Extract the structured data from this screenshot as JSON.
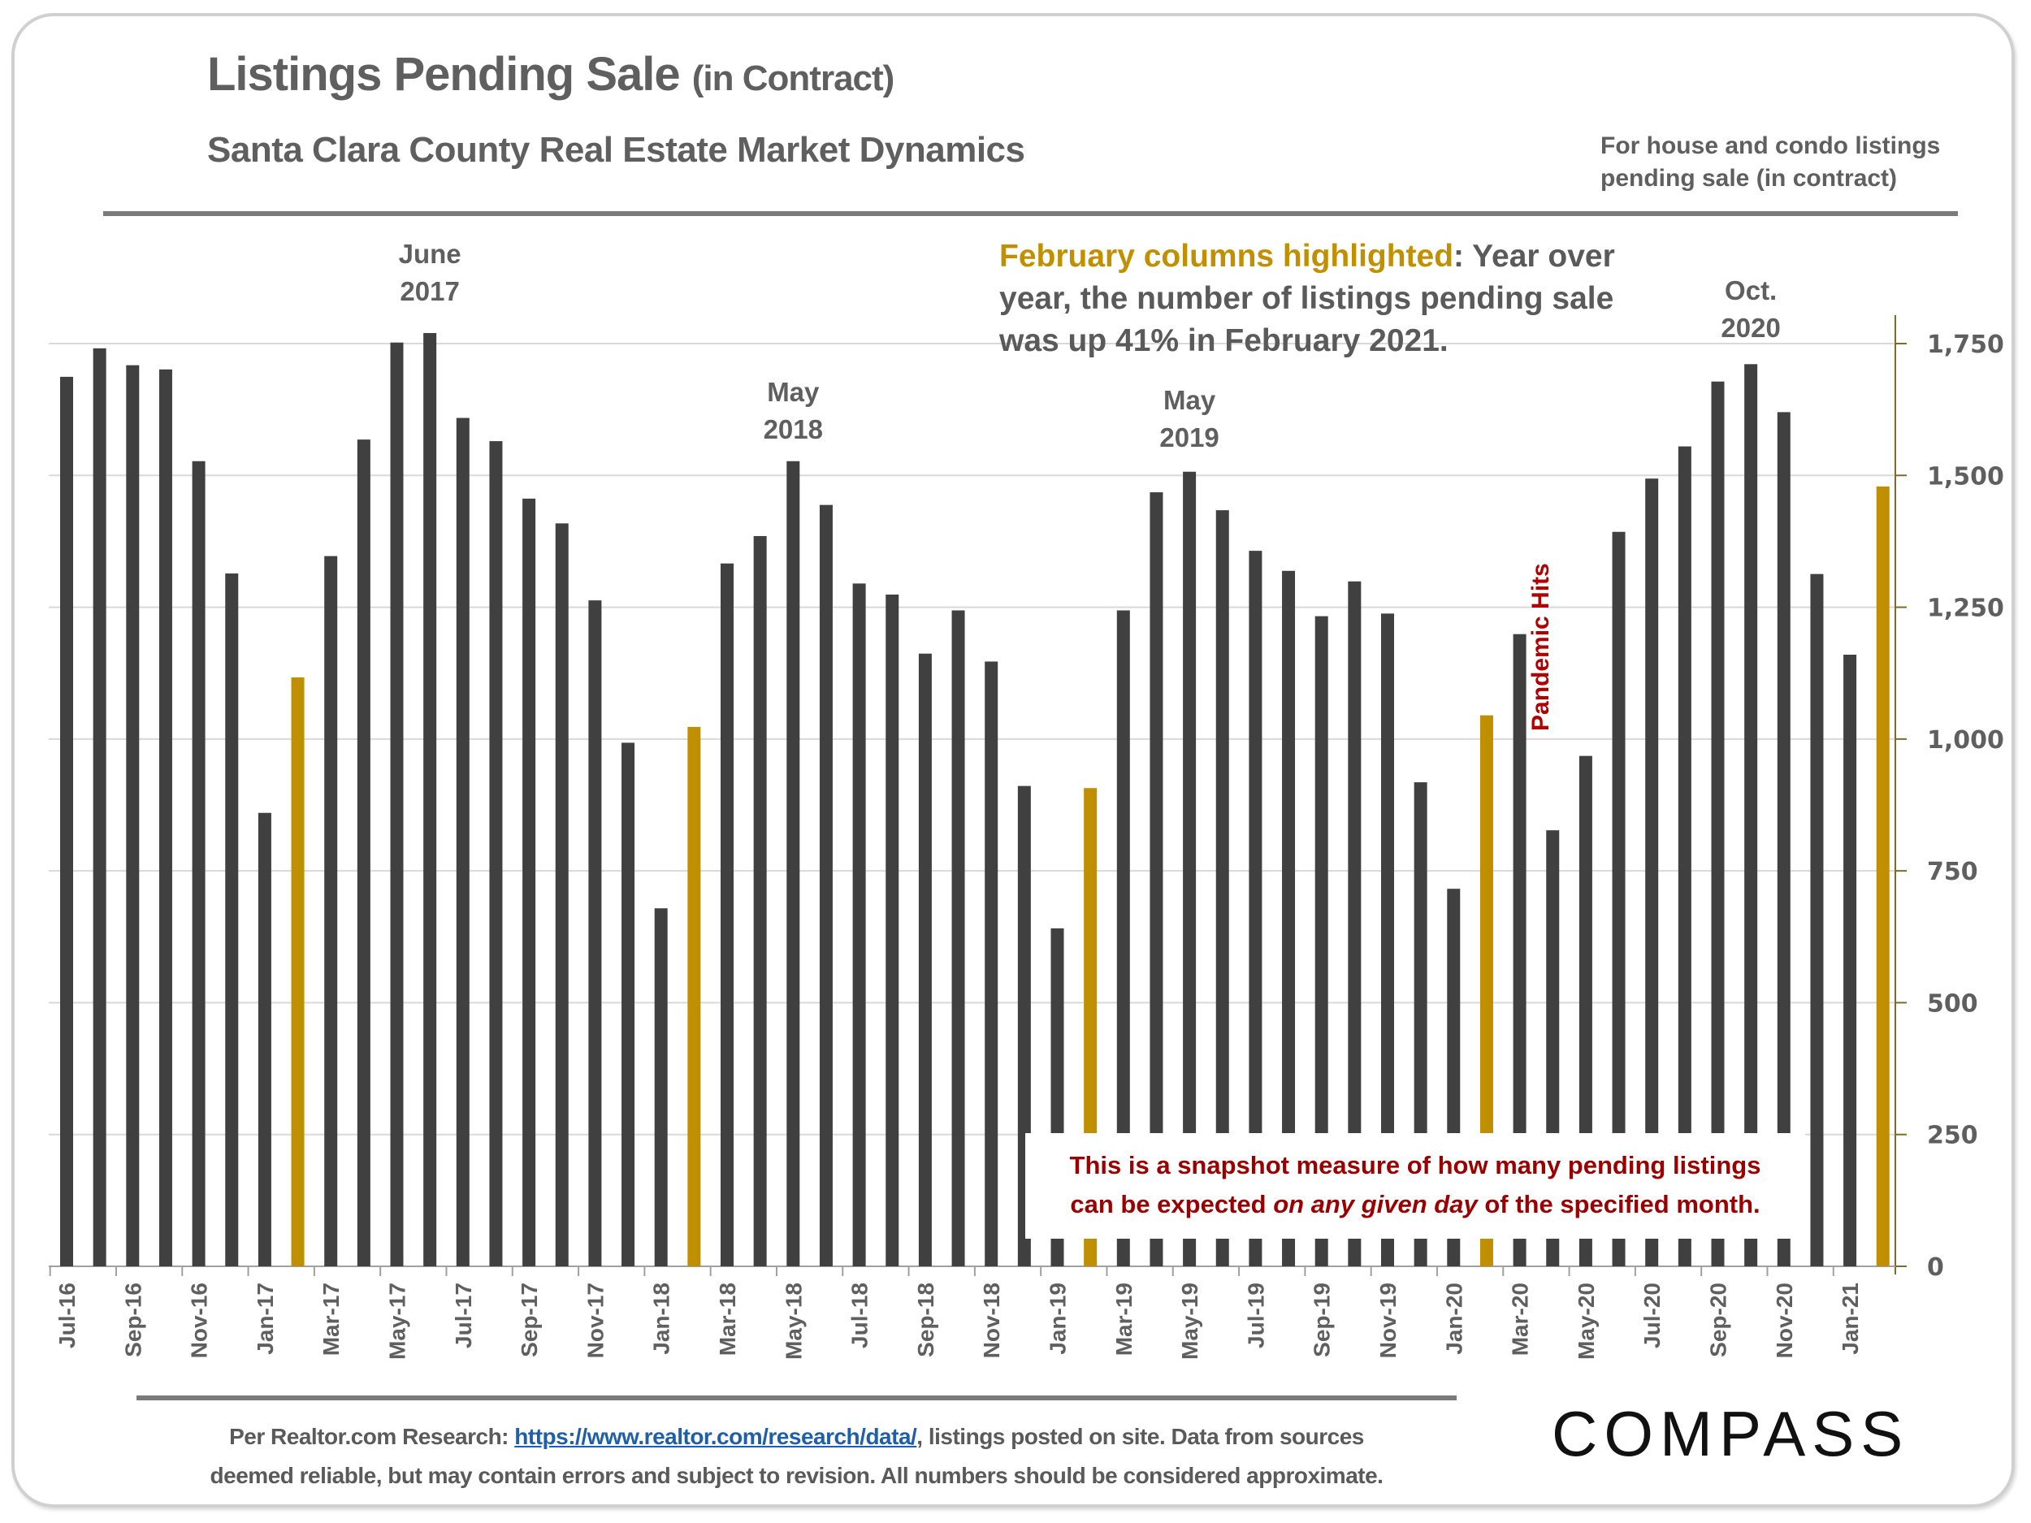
{
  "header": {
    "title": "Listings Pending Sale",
    "title_paren": "(in Contract)",
    "subtitle": "Santa Clara County Real Estate Market Dynamics",
    "note": "For house and condo listings pending sale (in contract)"
  },
  "annotations": {
    "headline_gold": "February columns highlighted",
    "headline_rest": ": Year over year, the number of listings pending sale was up 41% in February 2021.",
    "peaks": [
      {
        "line1": "June",
        "line2": "2017",
        "category": "Jun-17"
      },
      {
        "line1": "May",
        "line2": "2018",
        "category": "May-18"
      },
      {
        "line1": "May",
        "line2": "2019",
        "category": "May-19"
      },
      {
        "line1": "Oct.",
        "line2": "2020",
        "category": "Oct-20"
      }
    ],
    "pandemic": "Pandemic Hits",
    "snapshot_line1": "This is a snapshot measure of how many pending listings",
    "snapshot_line2_pre": "can be expected ",
    "snapshot_line2_em": "on any given day",
    "snapshot_line2_post": " of the specified month."
  },
  "footer": {
    "source_prefix": "Per Realtor.com Research:  ",
    "source_link": "https://www.realtor.com/research/data/",
    "source_suffix": ", listings posted on site. Data from sources",
    "line2": "deemed reliable, but may contain errors and subject to revision. All numbers should be considered approximate.",
    "logo": "COMPASS"
  },
  "colors": {
    "bar": "#404040",
    "highlight": "#bf8f00",
    "axis": "#7f6a2a",
    "grid": "#d9d9d9",
    "text": "#5f5f5f",
    "alert": "#9b0000"
  },
  "chart_data": {
    "type": "bar",
    "title": "Listings Pending Sale (in Contract)",
    "subtitle": "Santa Clara County Real Estate Market Dynamics",
    "xlabel": "",
    "ylabel": "",
    "ylim": [
      0,
      1750
    ],
    "yticks": [
      0,
      250,
      500,
      750,
      1000,
      1250,
      1500,
      1750
    ],
    "ytick_labels": [
      "0",
      "250",
      "500",
      "750",
      "1,000",
      "1,250",
      "1,500",
      "1,750"
    ],
    "y_axis_side": "right",
    "grid": true,
    "legend": "none",
    "categories": [
      "Jul-16",
      "Aug-16",
      "Sep-16",
      "Oct-16",
      "Nov-16",
      "Dec-16",
      "Jan-17",
      "Feb-17",
      "Mar-17",
      "Apr-17",
      "May-17",
      "Jun-17",
      "Jul-17",
      "Aug-17",
      "Sep-17",
      "Oct-17",
      "Nov-17",
      "Dec-17",
      "Jan-18",
      "Feb-18",
      "Mar-18",
      "Apr-18",
      "May-18",
      "Jun-18",
      "Jul-18",
      "Aug-18",
      "Sep-18",
      "Oct-18",
      "Nov-18",
      "Dec-18",
      "Jan-19",
      "Feb-19",
      "Mar-19",
      "Apr-19",
      "May-19",
      "Jun-19",
      "Jul-19",
      "Aug-19",
      "Sep-19",
      "Oct-19",
      "Nov-19",
      "Dec-19",
      "Jan-20",
      "Feb-20",
      "Mar-20",
      "Apr-20",
      "May-20",
      "Jun-20",
      "Jul-20",
      "Aug-20",
      "Sep-20",
      "Oct-20",
      "Nov-20",
      "Dec-20",
      "Jan-21",
      "Feb-21"
    ],
    "xtick_labels": [
      "Jul-16",
      "Sep-16",
      "Nov-16",
      "Jan-17",
      "Mar-17",
      "May-17",
      "Jul-17",
      "Sep-17",
      "Nov-17",
      "Jan-18",
      "Mar-18",
      "May-18",
      "Jul-18",
      "Sep-18",
      "Nov-18",
      "Jan-19",
      "Mar-19",
      "May-19",
      "Jul-19",
      "Sep-19",
      "Nov-19",
      "Jan-20",
      "Mar-20",
      "May-20",
      "Jul-20",
      "Sep-20",
      "Nov-20",
      "Jan-21"
    ],
    "values": [
      1687,
      1741,
      1709,
      1701,
      1527,
      1314,
      860,
      1117,
      1347,
      1568,
      1752,
      1770,
      1609,
      1565,
      1456,
      1409,
      1263,
      993,
      679,
      1023,
      1333,
      1385,
      1527,
      1444,
      1295,
      1274,
      1162,
      1244,
      1147,
      911,
      641,
      907,
      1244,
      1468,
      1507,
      1434,
      1357,
      1319,
      1233,
      1299,
      1238,
      918,
      716,
      1045,
      1199,
      827,
      968,
      1393,
      1494,
      1555,
      1678,
      1711,
      1620,
      1313,
      1160,
      1479
    ],
    "highlighted": [
      "Feb-17",
      "Feb-18",
      "Feb-19",
      "Feb-20",
      "Feb-21"
    ]
  }
}
